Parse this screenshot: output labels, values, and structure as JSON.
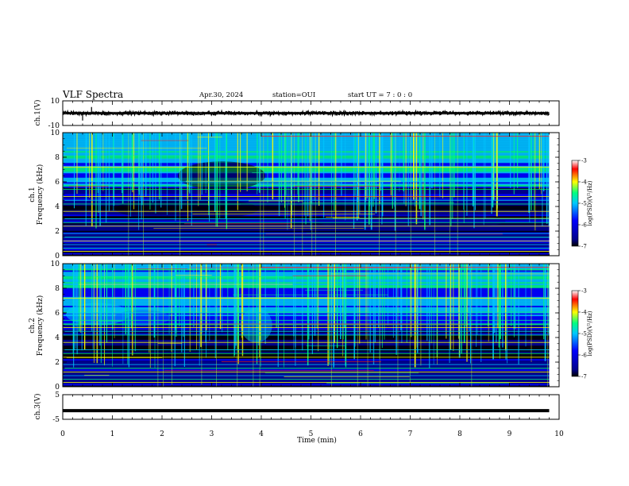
{
  "header": {
    "title": "VLF Spectra",
    "date": "Apr.30, 2024",
    "station": "station=OUI",
    "start": "start UT =  7 : 0 : 0"
  },
  "colors": {
    "colormap": [
      "#000000",
      "#00008b",
      "#0000ff",
      "#00c8ff",
      "#00ff80",
      "#ffff00",
      "#ff0000",
      "#ffffff"
    ],
    "trace": "#000000"
  },
  "chart_data": [
    {
      "type": "line",
      "name": "ch1-waveform",
      "ylabel": "ch.1(V)",
      "ylim": [
        -10,
        10
      ],
      "yticks": [
        "10",
        "-10"
      ],
      "xlim": [
        0,
        10
      ],
      "baseline": 0,
      "approx_amplitude": 1.5,
      "spikes_at_min": [
        0.4,
        0.58
      ]
    },
    {
      "type": "heatmap",
      "name": "ch1-spectrogram",
      "ylabel": "ch.1 Frequency (kHz)",
      "ylim": [
        0,
        10
      ],
      "yticks": [
        "0",
        "2",
        "4",
        "6",
        "8",
        "10"
      ],
      "xlim": [
        0,
        9.8
      ],
      "colorbar": {
        "label": "log(PSD)(V²/Hz)",
        "range": [
          -7,
          -3
        ],
        "ticks": [
          "-3",
          "-4",
          "-5",
          "-6",
          "-7"
        ]
      },
      "hum_line_khz": [
        0.36,
        0.6,
        0.9,
        1.2,
        1.5,
        1.8,
        2.4,
        2.7,
        3.0,
        3.6,
        4.2,
        4.5,
        4.8,
        5.4,
        6.0,
        7.2
      ],
      "sferic_band_khz": [
        5.5,
        10
      ]
    },
    {
      "type": "heatmap",
      "name": "ch2-spectrogram",
      "ylabel": "ch.2 Frequency (kHz)",
      "ylim": [
        0,
        10
      ],
      "yticks": [
        "0",
        "2",
        "4",
        "6",
        "8",
        "10"
      ],
      "xlim": [
        0,
        9.8
      ],
      "colorbar": {
        "label": "log(PSD)(V²/Hz)",
        "range": [
          -7,
          -3
        ],
        "ticks": [
          "-3",
          "-4",
          "-5",
          "-6",
          "-7"
        ]
      },
      "hum_line_khz": [
        0.36,
        0.6,
        0.9,
        1.2,
        1.5,
        1.8,
        2.4,
        2.7,
        3.0,
        3.6,
        4.2,
        4.5,
        4.8,
        5.4,
        6.0,
        7.2
      ],
      "sferic_band_khz": [
        5.0,
        10
      ]
    },
    {
      "type": "line",
      "name": "ch3-waveform",
      "ylabel": "ch.3(V)",
      "ylim": [
        -5,
        5
      ],
      "yticks": [
        "5",
        "-5"
      ],
      "xlim": [
        0,
        10
      ],
      "baseline": -1.5,
      "approx_amplitude": 0.1
    }
  ],
  "xaxis": {
    "label": "Time (min)",
    "ticks": [
      "0",
      "1",
      "2",
      "3",
      "4",
      "5",
      "6",
      "7",
      "8",
      "9",
      "10"
    ]
  }
}
